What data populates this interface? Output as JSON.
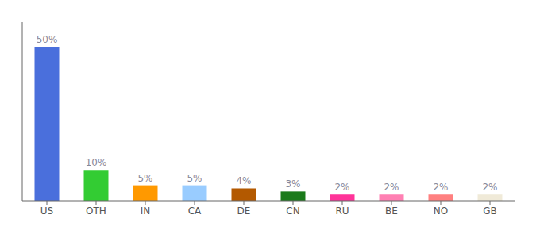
{
  "chart_data": {
    "type": "bar",
    "categories": [
      "US",
      "OTH",
      "IN",
      "CA",
      "DE",
      "CN",
      "RU",
      "BE",
      "NO",
      "GB"
    ],
    "values": [
      50,
      10,
      5,
      5,
      4,
      3,
      2,
      2,
      2,
      2
    ],
    "value_labels": [
      "50%",
      "10%",
      "5%",
      "5%",
      "4%",
      "3%",
      "2%",
      "2%",
      "2%",
      "2%"
    ],
    "colors": [
      "#4a6fdc",
      "#33cc33",
      "#ff9900",
      "#99ccff",
      "#b35900",
      "#1a7a1a",
      "#ff3399",
      "#ff80b3",
      "#ff8080",
      "#f0ead8"
    ],
    "ylim": [
      0,
      58
    ],
    "data_labels": true,
    "tick_labels": "x",
    "grid": false
  }
}
